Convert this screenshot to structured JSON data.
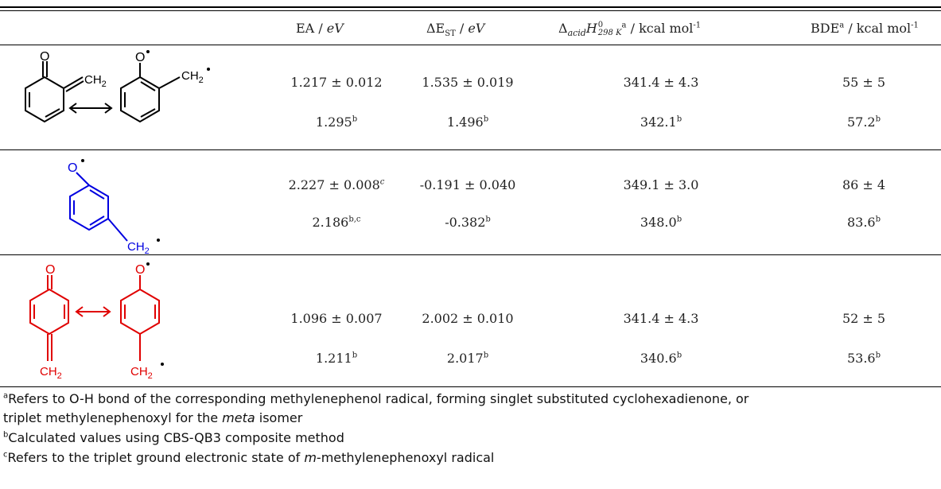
{
  "header": {
    "ea": {
      "main": "EA / ",
      "unit": "eV"
    },
    "dest": {
      "delta": "ΔE",
      "sub": "ST",
      "sep": " / ",
      "unit": "eV"
    },
    "dacid": {
      "delta": "Δ",
      "sub": "acid",
      "H": "H",
      "supzero": "0",
      "subT": "298 K",
      "supa": "a",
      "rest": " / kcal mol",
      "exp": "-1"
    },
    "bde": {
      "main": "BDE",
      "supa": "a",
      "rest": " / kcal mol",
      "exp": "-1"
    }
  },
  "rows": [
    {
      "color": "#000000",
      "exp": {
        "ea": "1.217 ± 0.012",
        "dest": "1.535 ± 0.019",
        "dacid": "341.4 ± 4.3",
        "bde": "55 ± 5"
      },
      "calc": {
        "ea": "1.295",
        "ea_sup": "b",
        "dest": "1.496",
        "dest_sup": "b",
        "dacid": "342.1",
        "dacid_sup": "b",
        "bde": "57.2",
        "bde_sup": "b"
      },
      "labels": {
        "o": "O",
        "ch2": "CH",
        "ch2_sub": "2"
      }
    },
    {
      "color": "#0000e0",
      "exp": {
        "ea": "2.227 ± 0.008",
        "ea_sup": "c",
        "dest": "-0.191 ± 0.040",
        "dacid": "349.1 ± 3.0",
        "bde": "86 ± 4"
      },
      "calc": {
        "ea": "2.186",
        "ea_sup": "b,c",
        "dest": "-0.382",
        "dest_sup": "b",
        "dacid": "348.0",
        "dacid_sup": "b",
        "bde": "83.6",
        "bde_sup": "b"
      },
      "labels": {
        "o": "O",
        "ch2": "CH",
        "ch2_sub": "2"
      }
    },
    {
      "color": "#e00000",
      "exp": {
        "ea": "1.096 ± 0.007",
        "dest": "2.002 ± 0.010",
        "dacid": "341.4 ± 4.3",
        "bde": "52 ± 5"
      },
      "calc": {
        "ea": "1.211",
        "ea_sup": "b",
        "dest": "2.017",
        "dest_sup": "b",
        "dacid": "340.6",
        "dacid_sup": "b",
        "bde": "53.6",
        "bde_sup": "b"
      },
      "labels": {
        "o": "O",
        "ch2": "CH",
        "ch2_sub": "2"
      }
    }
  ],
  "footnotes": {
    "a": {
      "mark": "a",
      "text1": "Refers to O-H bond of the corresponding methylenephenol radical, forming singlet substituted cyclohexadienone, or",
      "text2a": "triplet methylenephenoxyl for the ",
      "italic": "meta",
      "text2b": " isomer"
    },
    "b": {
      "mark": "b",
      "text": "Calculated values using CBS-QB3 composite method"
    },
    "c": {
      "mark": "c",
      "text_a": "Refers to the triplet ground electronic state of ",
      "italic": "m",
      "text_b": "-methylenephenoxyl radical"
    }
  },
  "colors": {
    "black": "#000000",
    "blue": "#0000e0",
    "red": "#e00000"
  }
}
